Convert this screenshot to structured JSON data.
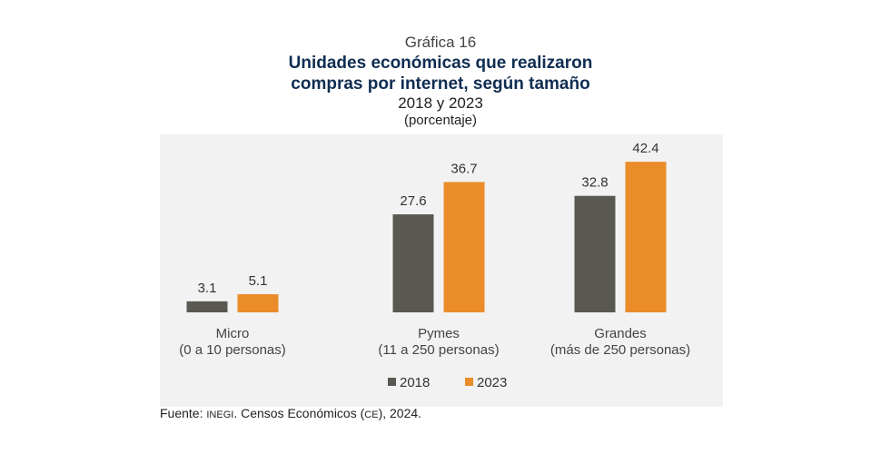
{
  "header": {
    "number": "Gráfica 16",
    "title_line1": "Unidades económicas que realizaron",
    "title_line2": "compras por internet, según tamaño",
    "subtitle": "2018 y 2023",
    "unit": "(porcentaje)"
  },
  "source": {
    "prefix": "Fuente: ",
    "org": "INEGI",
    "text": ". Censos Económicos (",
    "abbr": "CE",
    "suffix": "), 2024."
  },
  "chart_data": {
    "type": "bar",
    "title": "Unidades económicas que realizaron compras por internet, según tamaño",
    "categories": [
      [
        "Micro",
        "(0 a 10 personas)"
      ],
      [
        "Pymes",
        "(11 a 250 personas)"
      ],
      [
        "Grandes",
        "(más de 250 personas)"
      ]
    ],
    "series": [
      {
        "name": "2018",
        "color": "#595952",
        "values": [
          3.1,
          27.6,
          32.8
        ]
      },
      {
        "name": "2023",
        "color": "#ea8c2a",
        "values": [
          5.1,
          36.7,
          42.4
        ]
      }
    ],
    "ylim": [
      0,
      45
    ],
    "grid": false,
    "legend_position": "bottom-center",
    "value_labels": true
  }
}
